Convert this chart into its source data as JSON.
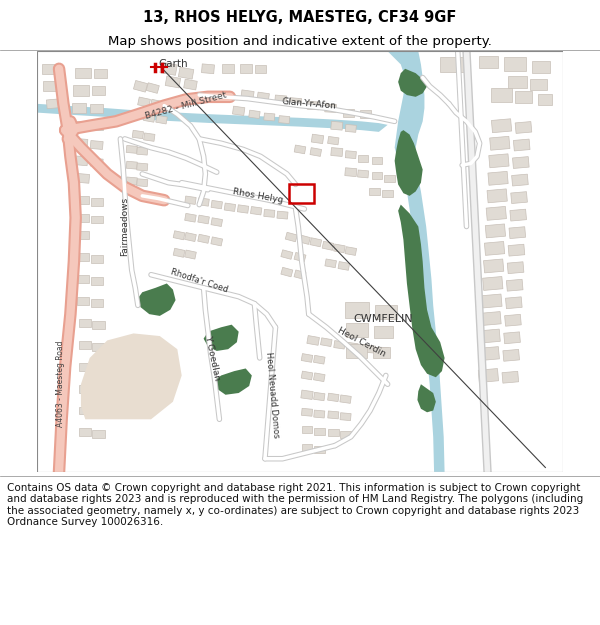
{
  "title_line1": "13, RHOS HELYG, MAESTEG, CF34 9GF",
  "title_line2": "Map shows position and indicative extent of the property.",
  "footer_text": "Contains OS data © Crown copyright and database right 2021. This information is subject to Crown copyright and database rights 2023 and is reproduced with the permission of HM Land Registry. The polygons (including the associated geometry, namely x, y co-ordinates) are subject to Crown copyright and database rights 2023 Ordnance Survey 100026316.",
  "title_fontsize": 10.5,
  "subtitle_fontsize": 9.5,
  "footer_fontsize": 7.5,
  "fig_width": 6.0,
  "fig_height": 6.25,
  "dpi": 100,
  "map_bg": "#ffffff",
  "water_color": "#aad3df",
  "green_color": "#4a7c4e",
  "building_color": "#e0dbd4",
  "road_b_color": "#f0a89c",
  "road_b_fill": "#f5cec8",
  "road_a_color": "#e8c080",
  "highlight_color": "#cc0000",
  "header_bg": "#ffffff",
  "footer_bg": "#ffffff",
  "border_color": "#888888",
  "diagonal_line_color": "#505050",
  "local_road_color": "#e0e0e0",
  "local_road_fill": "#ffffff"
}
